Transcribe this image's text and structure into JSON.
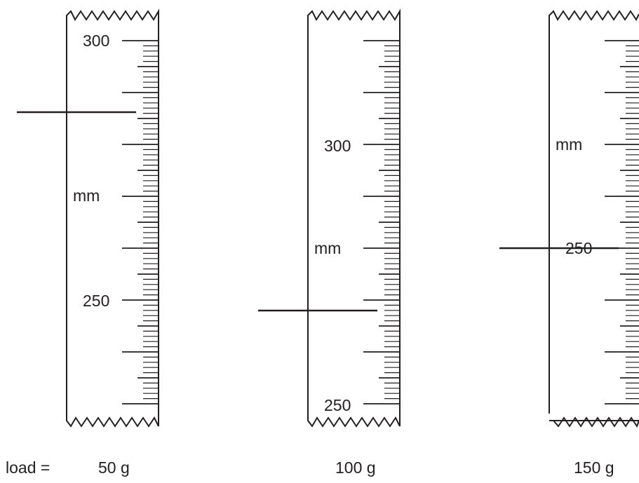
{
  "rulers": [
    {
      "label_upper": "300",
      "label_mid": "mm",
      "label_lower": "250",
      "load": "50 g",
      "pointer_mm": 286
    },
    {
      "label_upper": "300",
      "label_mid": "mm",
      "label_lower": "250",
      "load": "100 g",
      "pointer_mm": 281
    },
    {
      "label_upper": "mm",
      "label_mid": "250",
      "load": "150 g",
      "pointer_mm": 250
    }
  ],
  "load_label": "load ="
}
